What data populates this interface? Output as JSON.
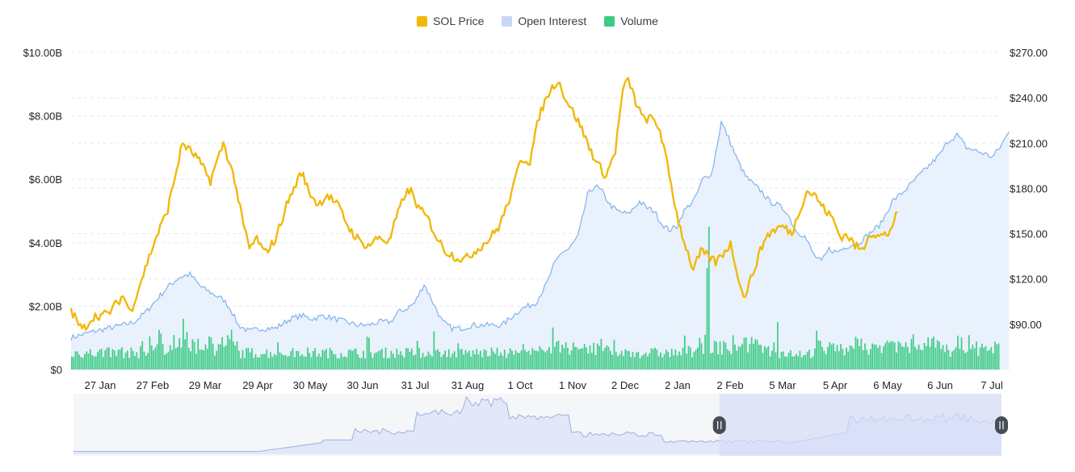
{
  "legend": {
    "price_label": "SOL Price",
    "oi_label": "Open Interest",
    "volume_label": "Volume"
  },
  "colors": {
    "price": "#F0B90B",
    "oi_line": "#7FB2EE",
    "oi_fill": "#E9F1FC",
    "volume": "#3DCB85",
    "grid": "#E6E8EC",
    "axis_text": "#1E2026",
    "navigator_fill": "#E3E8F8",
    "navigator_line": "#9DAFE3",
    "navigator_selection": "#D6DDF7",
    "handle": "#474D57"
  },
  "chart_data": {
    "type": "line",
    "x_labels": [
      "27 Jan",
      "27 Feb",
      "29 Mar",
      "29 Apr",
      "30 May",
      "30 Jun",
      "31 Jul",
      "31 Aug",
      "1 Oct",
      "1 Nov",
      "2 Dec",
      "2 Jan",
      "2 Feb",
      "5 Mar",
      "5 Apr",
      "6 May",
      "6 Jun",
      "7 Jul"
    ],
    "y_left": {
      "ticks": [
        "$0",
        "$2.00B",
        "$4.00B",
        "$6.00B",
        "$8.00B",
        "$10.00B"
      ],
      "range": [
        0,
        10
      ],
      "unit": "B USD"
    },
    "y_right": {
      "ticks": [
        "$90.00",
        "$120.00",
        "$150.00",
        "$180.00",
        "$210.00",
        "$240.00",
        "$270.00"
      ],
      "range": [
        60,
        270
      ],
      "unit": "USD"
    },
    "grid": true,
    "legend_position": "top-center",
    "series": [
      {
        "name": "SOL Price",
        "axis": "right",
        "type": "line",
        "points": [
          [
            0,
            99
          ],
          [
            6,
            86
          ],
          [
            12,
            95
          ],
          [
            20,
            97
          ],
          [
            28,
            109
          ],
          [
            32,
            98
          ],
          [
            38,
            120
          ],
          [
            45,
            145
          ],
          [
            52,
            166
          ],
          [
            60,
            210
          ],
          [
            68,
            200
          ],
          [
            75,
            185
          ],
          [
            82,
            210
          ],
          [
            88,
            186
          ],
          [
            92,
            160
          ],
          [
            96,
            140
          ],
          [
            100,
            147
          ],
          [
            104,
            137
          ],
          [
            110,
            146
          ],
          [
            116,
            169
          ],
          [
            124,
            191
          ],
          [
            128,
            178
          ],
          [
            133,
            169
          ],
          [
            138,
            176
          ],
          [
            144,
            168
          ],
          [
            150,
            153
          ],
          [
            156,
            144
          ],
          [
            160,
            142
          ],
          [
            166,
            148
          ],
          [
            171,
            144
          ],
          [
            175,
            160
          ],
          [
            180,
            177
          ],
          [
            183,
            178
          ],
          [
            187,
            167
          ],
          [
            192,
            160
          ],
          [
            197,
            147
          ],
          [
            202,
            138
          ],
          [
            208,
            134
          ],
          [
            212,
            133
          ],
          [
            218,
            139
          ],
          [
            224,
            145
          ],
          [
            230,
            154
          ],
          [
            234,
            166
          ],
          [
            238,
            180
          ],
          [
            242,
            200
          ],
          [
            247,
            198
          ],
          [
            252,
            228
          ],
          [
            257,
            243
          ],
          [
            262,
            252
          ],
          [
            266,
            240
          ],
          [
            270,
            231
          ],
          [
            274,
            222
          ],
          [
            279,
            207
          ],
          [
            283,
            197
          ],
          [
            288,
            188
          ],
          [
            293,
            205
          ],
          [
            297,
            245
          ],
          [
            300,
            252
          ],
          [
            304,
            237
          ],
          [
            308,
            226
          ],
          [
            313,
            226
          ],
          [
            317,
            219
          ],
          [
            321,
            195
          ],
          [
            325,
            170
          ],
          [
            327,
            158
          ],
          [
            331,
            141
          ],
          [
            335,
            126
          ],
          [
            339,
            138
          ],
          [
            343,
            135
          ],
          [
            347,
            131
          ],
          [
            351,
            137
          ],
          [
            355,
            143
          ],
          [
            359,
            123
          ],
          [
            362,
            107
          ],
          [
            366,
            120
          ],
          [
            370,
            135
          ],
          [
            374,
            148
          ],
          [
            378,
            152
          ],
          [
            383,
            155
          ],
          [
            388,
            150
          ],
          [
            392,
            165
          ],
          [
            396,
            178
          ],
          [
            400,
            176
          ],
          [
            405,
            167
          ],
          [
            410,
            160
          ],
          [
            414,
            148
          ],
          [
            418,
            149
          ],
          [
            422,
            142
          ],
          [
            426,
            139
          ],
          [
            430,
            151
          ],
          [
            435,
            148
          ],
          [
            440,
            150
          ],
          [
            445,
            164
          ]
        ]
      },
      {
        "name": "Open Interest",
        "axis": "left",
        "type": "area",
        "points": [
          [
            0,
            1.0
          ],
          [
            6,
            1.1
          ],
          [
            12,
            1.2
          ],
          [
            20,
            1.3
          ],
          [
            28,
            1.4
          ],
          [
            34,
            1.5
          ],
          [
            40,
            1.8
          ],
          [
            46,
            2.2
          ],
          [
            52,
            2.6
          ],
          [
            58,
            2.9
          ],
          [
            64,
            3.0
          ],
          [
            70,
            2.6
          ],
          [
            76,
            2.4
          ],
          [
            82,
            2.2
          ],
          [
            86,
            1.9
          ],
          [
            90,
            1.4
          ],
          [
            96,
            1.2
          ],
          [
            102,
            1.3
          ],
          [
            110,
            1.3
          ],
          [
            118,
            1.6
          ],
          [
            124,
            1.7
          ],
          [
            130,
            1.6
          ],
          [
            136,
            1.7
          ],
          [
            142,
            1.6
          ],
          [
            148,
            1.5
          ],
          [
            154,
            1.4
          ],
          [
            160,
            1.4
          ],
          [
            166,
            1.5
          ],
          [
            172,
            1.5
          ],
          [
            176,
            1.8
          ],
          [
            180,
            1.9
          ],
          [
            185,
            2.1
          ],
          [
            190,
            2.7
          ],
          [
            195,
            2.1
          ],
          [
            200,
            1.5
          ],
          [
            205,
            1.3
          ],
          [
            210,
            1.3
          ],
          [
            216,
            1.4
          ],
          [
            222,
            1.4
          ],
          [
            228,
            1.4
          ],
          [
            232,
            1.4
          ],
          [
            238,
            1.7
          ],
          [
            242,
            1.9
          ],
          [
            246,
            2.0
          ],
          [
            250,
            2.1
          ],
          [
            253,
            2.4
          ],
          [
            256,
            2.7
          ],
          [
            260,
            3.3
          ],
          [
            264,
            3.7
          ],
          [
            268,
            3.8
          ],
          [
            273,
            4.2
          ],
          [
            278,
            5.5
          ],
          [
            282,
            5.8
          ],
          [
            286,
            5.6
          ],
          [
            290,
            5.2
          ],
          [
            294,
            5.0
          ],
          [
            300,
            4.9
          ],
          [
            306,
            5.3
          ],
          [
            310,
            5.1
          ],
          [
            314,
            5.0
          ],
          [
            318,
            4.6
          ],
          [
            322,
            4.4
          ],
          [
            326,
            4.5
          ],
          [
            330,
            5.0
          ],
          [
            336,
            5.4
          ],
          [
            340,
            6.0
          ],
          [
            345,
            6.2
          ],
          [
            350,
            7.8
          ],
          [
            354,
            7.3
          ],
          [
            358,
            6.7
          ],
          [
            363,
            6.1
          ],
          [
            368,
            5.8
          ],
          [
            372,
            5.6
          ],
          [
            376,
            5.3
          ],
          [
            380,
            5.2
          ],
          [
            385,
            5.0
          ],
          [
            390,
            4.4
          ],
          [
            395,
            4.2
          ],
          [
            400,
            3.6
          ],
          [
            404,
            3.4
          ],
          [
            408,
            3.8
          ],
          [
            412,
            3.7
          ],
          [
            418,
            3.9
          ],
          [
            424,
            4.0
          ],
          [
            430,
            4.3
          ],
          [
            436,
            4.6
          ],
          [
            442,
            5.3
          ],
          [
            448,
            5.6
          ],
          [
            453,
            5.9
          ],
          [
            458,
            6.2
          ],
          [
            463,
            6.5
          ],
          [
            468,
            6.8
          ],
          [
            472,
            7.2
          ],
          [
            477,
            7.4
          ],
          [
            482,
            7.0
          ],
          [
            487,
            6.9
          ],
          [
            492,
            6.8
          ],
          [
            496,
            6.7
          ],
          [
            500,
            7.0
          ],
          [
            505,
            7.5
          ]
        ]
      },
      {
        "name": "Volume",
        "axis": "left",
        "type": "bar",
        "note": "daily volume, typically 0.3–0.9B, peaks ≈1.6B (Mar), ≈1.2B (Jul), ≈4.5B (late Jan)"
      }
    ]
  },
  "navigator": {
    "selection_start_fraction": 0.696,
    "selection_end_fraction": 1.0
  }
}
